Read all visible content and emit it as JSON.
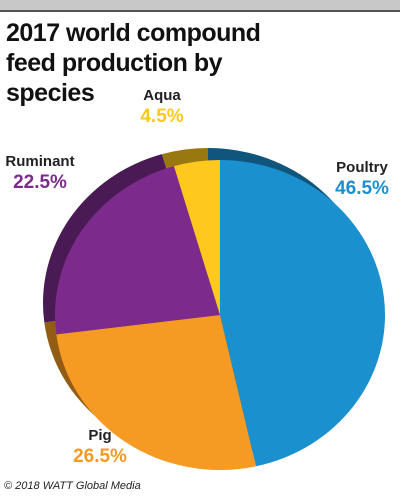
{
  "chart_data": {
    "type": "pie",
    "title": "2017 world compound feed production by species",
    "categories": [
      "Poultry",
      "Pig",
      "Ruminant",
      "Aqua"
    ],
    "values": [
      46.5,
      26.5,
      22.5,
      4.5
    ],
    "value_labels": [
      "46.5%",
      "26.5%",
      "22.5%",
      "4.5%"
    ],
    "colors": [
      "#1a90cf",
      "#f59a22",
      "#7c2b8c",
      "#ffc81c"
    ]
  },
  "footer": {
    "credit": "© 2018 WATT Global Media"
  }
}
